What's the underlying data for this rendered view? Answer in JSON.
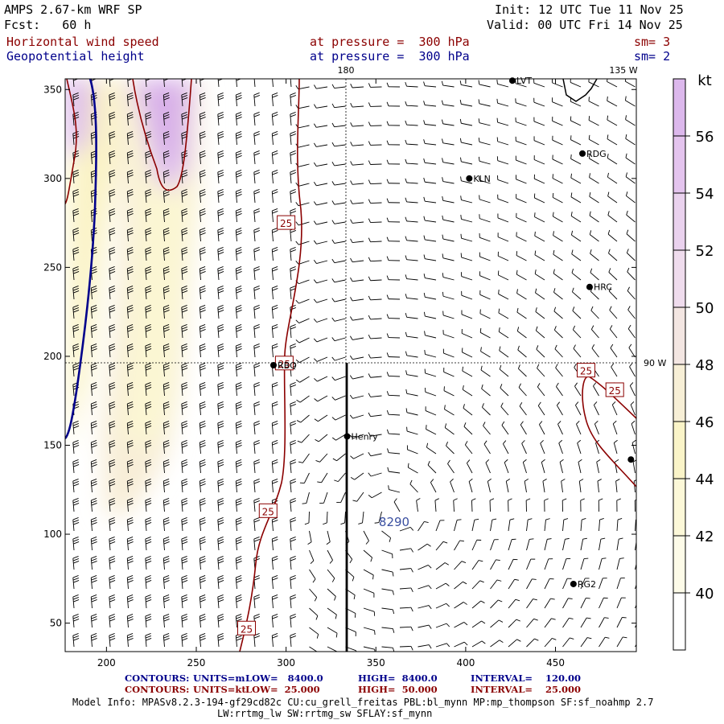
{
  "header": {
    "model": "AMPS 2.67-km WRF SP",
    "fcst": "Fcst:   60 h",
    "init": "Init: 12 UTC Tue 11 Nov 25",
    "valid": "Valid: 00 UTC Fri 14 Nov 25",
    "field1": "Horizontal wind speed",
    "field2": "Geopotential height",
    "pressure1": "at pressure =  300 hPa",
    "pressure2": "at pressure =  300 hPa",
    "sm1": "sm= 3",
    "sm2": "sm= 2"
  },
  "map": {
    "top_labels": [
      "180",
      "135 W"
    ],
    "side_label": "90 W",
    "x_ticks": [
      "200",
      "250",
      "300",
      "350",
      "400",
      "450"
    ],
    "y_ticks": [
      "350",
      "300",
      "250",
      "200",
      "150",
      "100",
      "50"
    ],
    "x_range": [
      177,
      495
    ],
    "y_range": [
      34,
      356
    ],
    "stations": [
      {
        "name": "LVT",
        "x": 426,
        "y": 355
      },
      {
        "name": "RDG",
        "x": 465,
        "y": 314
      },
      {
        "name": "KLN",
        "x": 402,
        "y": 300
      },
      {
        "name": "HRC",
        "x": 469,
        "y": 239
      },
      {
        "name": "RBQ",
        "x": 293,
        "y": 195
      },
      {
        "name": "Henry",
        "x": 334,
        "y": 155
      },
      {
        "name": "RG2",
        "x": 460,
        "y": 72
      },
      {
        "name": "",
        "x": 492,
        "y": 142
      }
    ],
    "contour_labels": [
      {
        "text": "25",
        "x": 300,
        "y": 275
      },
      {
        "text": "25",
        "x": 299,
        "y": 196
      },
      {
        "text": "25",
        "x": 290,
        "y": 113
      },
      {
        "text": "25",
        "x": 278,
        "y": 47
      },
      {
        "text": "25",
        "x": 467,
        "y": 192
      },
      {
        "text": "25",
        "x": 483,
        "y": 181
      }
    ],
    "low_label": "8290"
  },
  "colorbar": {
    "unit": "kt",
    "labels": [
      "56",
      "54",
      "52",
      "50",
      "48",
      "46",
      "44",
      "42",
      "40"
    ],
    "colors": [
      "#dcb8ec",
      "#e4c4ee",
      "#ead2ee",
      "#efdced",
      "#f3e6e2",
      "#f7efd6",
      "#faf4c8",
      "#fcf8d8",
      "#fdfbe8",
      "#ffffff"
    ]
  },
  "footer": {
    "row1": {
      "label": "CONTOURS:",
      "units": "UNITS=m",
      "low": "LOW=   8400.0",
      "high": "HIGH=  8400.0",
      "interval": "INTERVAL=    120.00"
    },
    "row2": {
      "label": "CONTOURS:",
      "units": "UNITS=kt",
      "low": "LOW=  25.000",
      "high": "HIGH=  50.000",
      "interval": "INTERVAL=    25.000"
    },
    "info1": "Model Info: MPASv8.2.3-194-gf29cd82c CU:cu_grell_freitas PBL:bl_mynn MP:mp_thompson SF:sf_noahmp 2.7",
    "info2": "LW:rrtmg_lw SW:rrtmg_sw SFLAY:sf_mynn"
  }
}
